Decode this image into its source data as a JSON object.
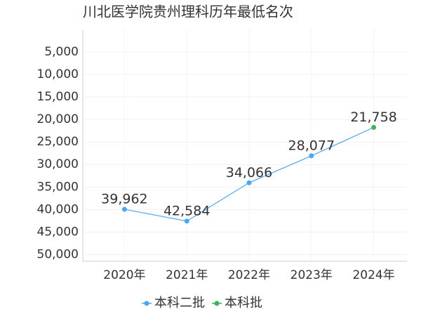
{
  "chart_data": {
    "type": "line",
    "title": "川北医学院贵州理科历年最低名次",
    "categories": [
      "2020年",
      "2021年",
      "2022年",
      "2023年",
      "2024年"
    ],
    "series": [
      {
        "name": "本科二批",
        "color": "#4da6f0",
        "values": [
          39962,
          42584,
          34066,
          28077,
          null
        ],
        "value_labels": [
          "39,962",
          "42,584",
          "34,066",
          "28,077",
          null
        ]
      },
      {
        "name": "本科批",
        "color": "#3cb35a",
        "values": [
          null,
          null,
          null,
          null,
          21758
        ],
        "value_labels": [
          null,
          null,
          null,
          null,
          "21,758"
        ]
      }
    ],
    "ylim": [
      0,
      51500
    ],
    "y_inverted": true,
    "yticks": [
      {
        "value": 5000,
        "label": "5,000"
      },
      {
        "value": 10000,
        "label": "10,000"
      },
      {
        "value": 15000,
        "label": "15,000"
      },
      {
        "value": 20000,
        "label": "20,000"
      },
      {
        "value": 25000,
        "label": "25,000"
      },
      {
        "value": 30000,
        "label": "30,000"
      },
      {
        "value": 35000,
        "label": "35,000"
      },
      {
        "value": 40000,
        "label": "40,000"
      },
      {
        "value": 45000,
        "label": "45,000"
      },
      {
        "value": 50000,
        "label": "50,000"
      }
    ],
    "grid": true
  }
}
